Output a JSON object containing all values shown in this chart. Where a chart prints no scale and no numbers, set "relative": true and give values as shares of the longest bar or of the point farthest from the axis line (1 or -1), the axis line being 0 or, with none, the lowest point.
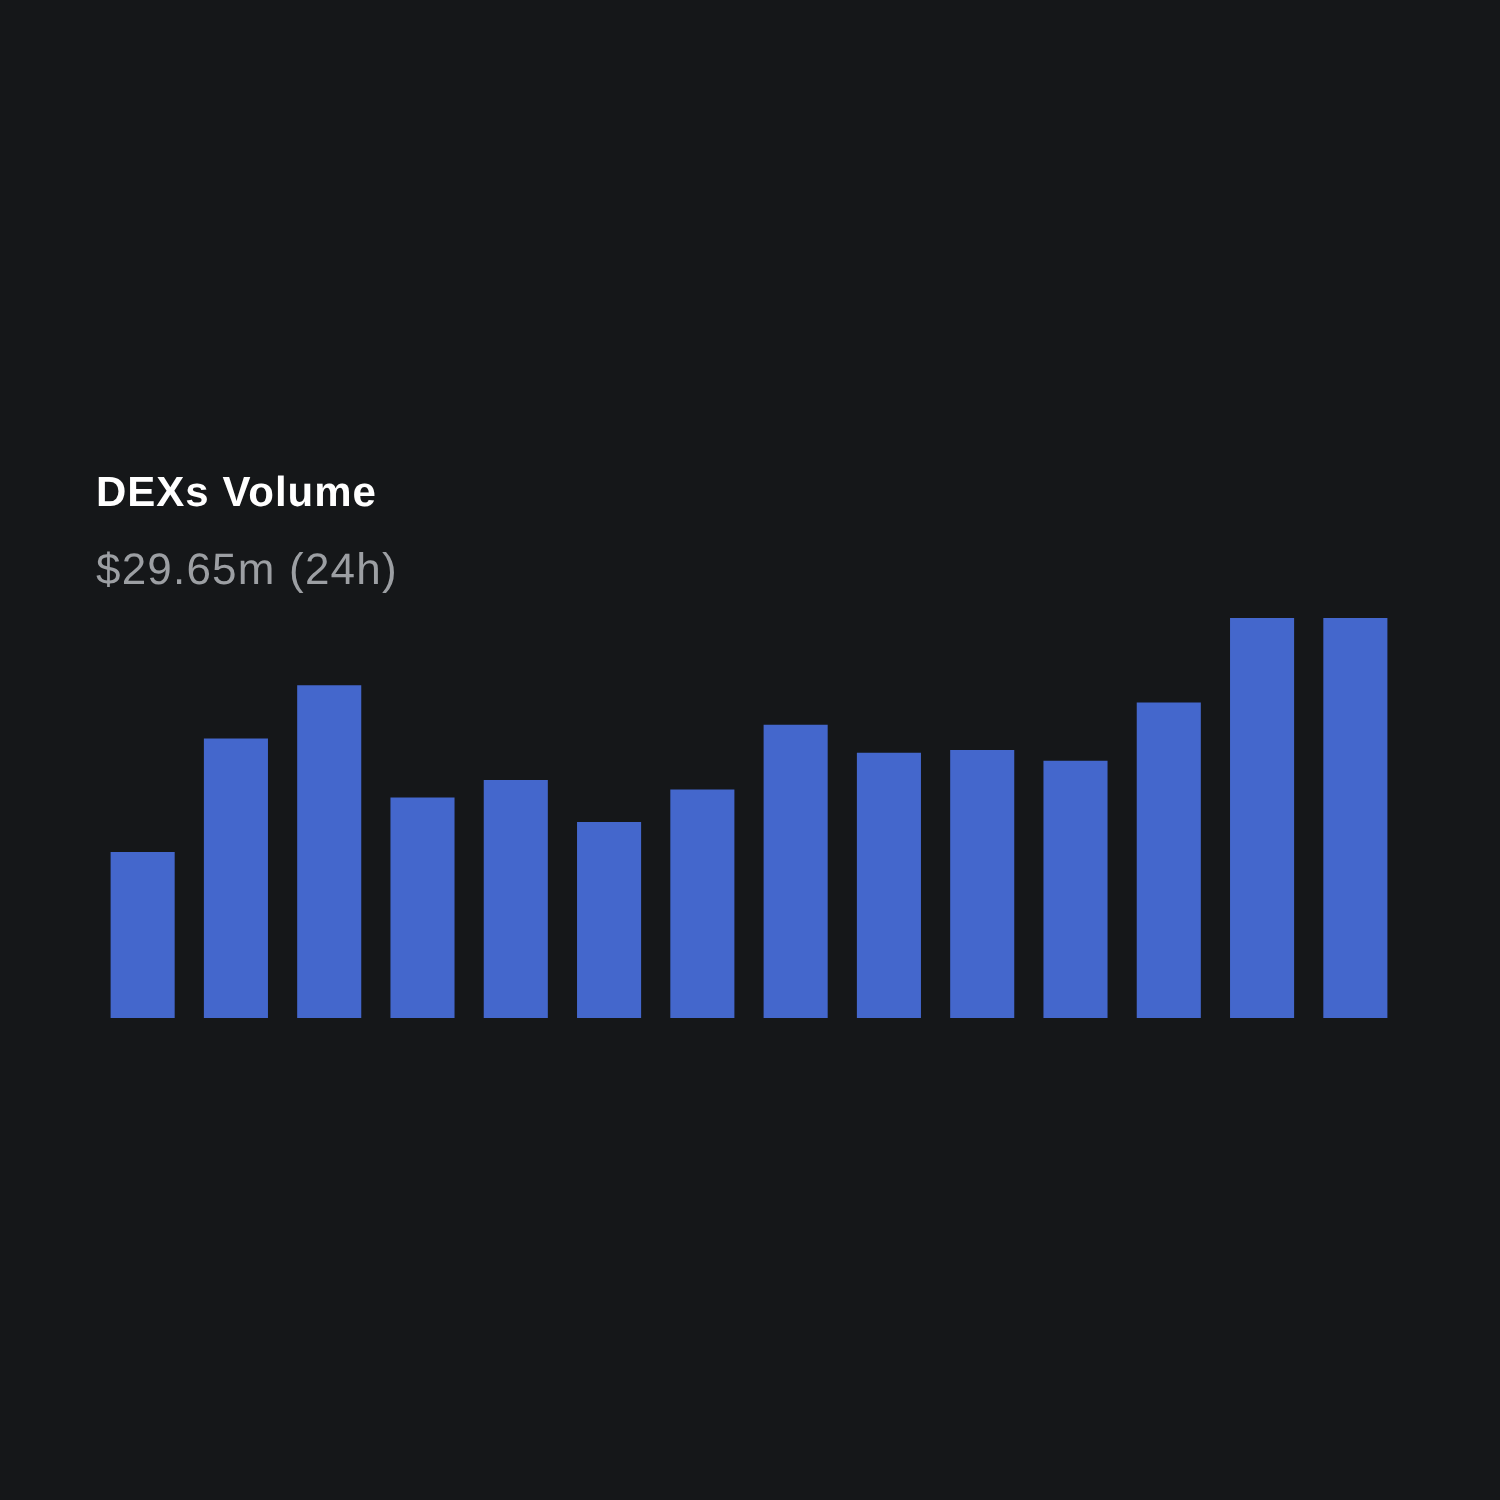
{
  "chart_data": {
    "type": "bar",
    "title": "DEXs Volume",
    "subtitle": "$29.65m (24h)",
    "categories": [
      null,
      null,
      null,
      null,
      null,
      null,
      null,
      null,
      null,
      null,
      null,
      null,
      null,
      null
    ],
    "values": [
      0.415,
      0.699,
      0.832,
      0.551,
      0.595,
      0.49,
      0.571,
      0.733,
      0.663,
      0.67,
      0.643,
      0.789,
      1,
      1
    ],
    "color": "#4467cc",
    "relative": true,
    "tick_labels": false
  }
}
